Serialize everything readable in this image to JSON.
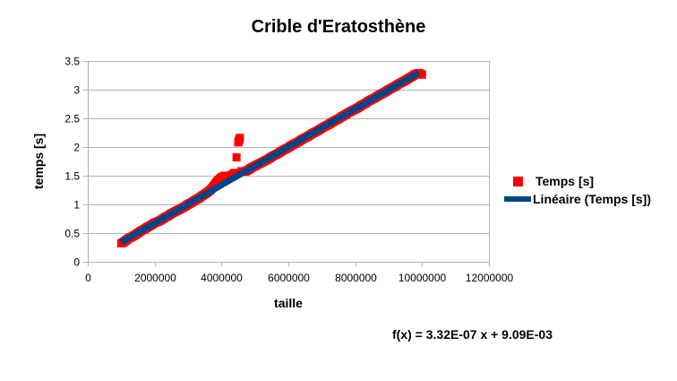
{
  "chart_data": {
    "type": "scatter",
    "title": "Crible d'Eratosthène",
    "xlabel": "taille",
    "ylabel": "temps [s]",
    "xlim": [
      0,
      12000000
    ],
    "ylim": [
      0,
      3.5
    ],
    "x_ticks": [
      0,
      2000000,
      4000000,
      6000000,
      8000000,
      10000000,
      12000000
    ],
    "x_tick_labels": [
      "0",
      "2000000",
      "4000000",
      "6000000",
      "8000000",
      "10000000",
      "12000000"
    ],
    "y_ticks": [
      0,
      0.5,
      1,
      1.5,
      2,
      2.5,
      3,
      3.5
    ],
    "y_tick_labels": [
      "0",
      "0.5",
      "1",
      "1.5",
      "2",
      "2.5",
      "3",
      "3.5"
    ],
    "grid": {
      "horizontal": true,
      "vertical": false
    },
    "legend_position": "right",
    "series": [
      {
        "name": "Temps [s]",
        "kind": "scatter",
        "marker": "square",
        "color": "#ff0000",
        "x_range": [
          1000000,
          10000000
        ],
        "points": [
          [
            1000000,
            0.32
          ],
          [
            1100000,
            0.35
          ],
          [
            1200000,
            0.4
          ],
          [
            1300000,
            0.43
          ],
          [
            1400000,
            0.46
          ],
          [
            1500000,
            0.5
          ],
          [
            1600000,
            0.54
          ],
          [
            1700000,
            0.57
          ],
          [
            1800000,
            0.61
          ],
          [
            1900000,
            0.64
          ],
          [
            2000000,
            0.68
          ],
          [
            2100000,
            0.7
          ],
          [
            2200000,
            0.73
          ],
          [
            2300000,
            0.77
          ],
          [
            2400000,
            0.8
          ],
          [
            2500000,
            0.84
          ],
          [
            2600000,
            0.87
          ],
          [
            2700000,
            0.9
          ],
          [
            2800000,
            0.93
          ],
          [
            2900000,
            0.96
          ],
          [
            3000000,
            1.0
          ],
          [
            3100000,
            1.03
          ],
          [
            3200000,
            1.07
          ],
          [
            3300000,
            1.1
          ],
          [
            3400000,
            1.14
          ],
          [
            3500000,
            1.18
          ],
          [
            3600000,
            1.22
          ],
          [
            3700000,
            1.27
          ],
          [
            3800000,
            1.35
          ],
          [
            3900000,
            1.42
          ],
          [
            4000000,
            1.47
          ],
          [
            4100000,
            1.5
          ],
          [
            4200000,
            1.49
          ],
          [
            4300000,
            1.51
          ],
          [
            4400000,
            1.55
          ],
          [
            4450000,
            1.82
          ],
          [
            4500000,
            2.08
          ],
          [
            4550000,
            2.16
          ],
          [
            4600000,
            1.58
          ],
          [
            4700000,
            1.57
          ],
          [
            4800000,
            1.6
          ],
          [
            4900000,
            1.64
          ],
          [
            5000000,
            1.67
          ],
          [
            5100000,
            1.7
          ],
          [
            5200000,
            1.73
          ],
          [
            5300000,
            1.76
          ],
          [
            5400000,
            1.79
          ],
          [
            5500000,
            1.83
          ],
          [
            5600000,
            1.86
          ],
          [
            5700000,
            1.89
          ],
          [
            5800000,
            1.93
          ],
          [
            5900000,
            1.96
          ],
          [
            6000000,
            1.99
          ],
          [
            6100000,
            2.03
          ],
          [
            6200000,
            2.06
          ],
          [
            6300000,
            2.09
          ],
          [
            6400000,
            2.13
          ],
          [
            6500000,
            2.16
          ],
          [
            6600000,
            2.19
          ],
          [
            6700000,
            2.23
          ],
          [
            6800000,
            2.26
          ],
          [
            6900000,
            2.29
          ],
          [
            7000000,
            2.33
          ],
          [
            7100000,
            2.36
          ],
          [
            7200000,
            2.39
          ],
          [
            7300000,
            2.43
          ],
          [
            7400000,
            2.46
          ],
          [
            7500000,
            2.49
          ],
          [
            7600000,
            2.53
          ],
          [
            7700000,
            2.56
          ],
          [
            7800000,
            2.6
          ],
          [
            7900000,
            2.63
          ],
          [
            8000000,
            2.66
          ],
          [
            8100000,
            2.69
          ],
          [
            8200000,
            2.73
          ],
          [
            8300000,
            2.76
          ],
          [
            8400000,
            2.8
          ],
          [
            8500000,
            2.83
          ],
          [
            8600000,
            2.86
          ],
          [
            8700000,
            2.9
          ],
          [
            8800000,
            2.93
          ],
          [
            8900000,
            2.96
          ],
          [
            9000000,
            3.0
          ],
          [
            9100000,
            3.03
          ],
          [
            9200000,
            3.06
          ],
          [
            9300000,
            3.1
          ],
          [
            9400000,
            3.13
          ],
          [
            9500000,
            3.16
          ],
          [
            9600000,
            3.2
          ],
          [
            9700000,
            3.23
          ],
          [
            9800000,
            3.27
          ],
          [
            9900000,
            3.29
          ],
          [
            10000000,
            3.26
          ]
        ]
      },
      {
        "name": "Linéaire (Temps [s])",
        "kind": "trendline",
        "color": "#004586",
        "slope": 3.32e-07,
        "intercept": 0.00909,
        "x_range": [
          1000000,
          9900000
        ]
      }
    ],
    "annotations": [
      "f(x) = 3.32E-07 x + 9.09E-03"
    ]
  },
  "labels": {
    "title": "Crible d'Eratosthène",
    "xlabel": "taille",
    "ylabel": "temps [s]",
    "equation": "f(x) = 3.32E-07 x + 9.09E-03"
  },
  "legend": {
    "items": [
      {
        "label": "Temps [s]",
        "marker": "red-square"
      },
      {
        "label": "Linéaire (Temps [s])",
        "marker": "blue-line"
      }
    ]
  },
  "colors": {
    "scatter": "#ff0000",
    "trendline": "#004586",
    "grid": "#b3b3b3",
    "axis": "#b3b3b3"
  }
}
